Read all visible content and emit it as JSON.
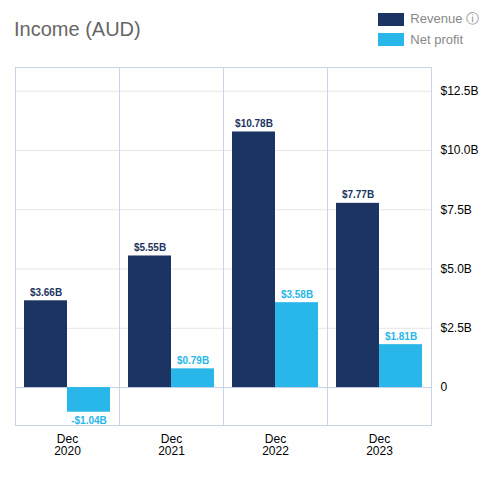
{
  "chart_data": {
    "type": "bar",
    "title": "Income (AUD)",
    "categories": [
      "Dec\n2020",
      "Dec\n2021",
      "Dec\n2022",
      "Dec\n2023"
    ],
    "series": [
      {
        "name": "Revenue ⓘ",
        "color": "#1c3461",
        "values": [
          3.66,
          5.55,
          10.78,
          7.77
        ],
        "value_labels": [
          "$3.66B",
          "$5.55B",
          "$10.78B",
          "$7.77B"
        ]
      },
      {
        "name": "Net profit",
        "color": "#29b6e8",
        "values": [
          -1.04,
          0.79,
          3.58,
          1.81
        ],
        "value_labels": [
          "-$1.04B",
          "$0.79B",
          "$3.58B",
          "$1.81B"
        ]
      }
    ],
    "ylim": [
      -1.6,
      13.5
    ],
    "yticks": [
      0,
      {
        "value": 2.5,
        "label": "$2.5B"
      },
      {
        "value": 5,
        "label": "$5.0B"
      },
      {
        "value": 7.5,
        "label": "$7.5B"
      },
      {
        "value": 10,
        "label": "$10.0B"
      },
      {
        "value": 12.5,
        "label": "$12.5B"
      }
    ],
    "grid": true,
    "data_labels": true,
    "legend": "top-right"
  }
}
